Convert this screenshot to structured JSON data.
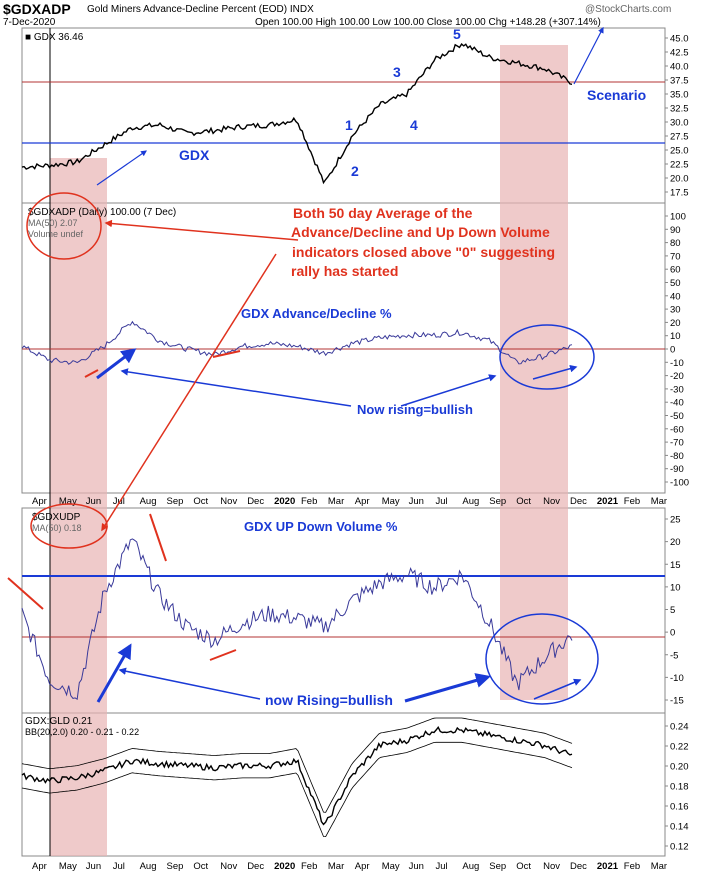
{
  "header": {
    "symbol": "$GDXADP",
    "name": "Gold Miners Advance-Decline Percent (EOD)  INDX",
    "date": "7-Dec-2020",
    "ohlc": "Open 100.00  High 100.00  Low 100.00  Close 100.00  Chg +148.28 (+307.14%)",
    "watermark": "@StockCharts.com"
  },
  "x_axis": {
    "labels": [
      "Apr",
      "May",
      "Jun",
      "Jul",
      "Aug",
      "Sep",
      "Oct",
      "Nov",
      "Dec",
      "2020",
      "Feb",
      "Mar",
      "Apr",
      "May",
      "Jun",
      "Jul",
      "Aug",
      "Sep",
      "Oct",
      "Nov",
      "Dec",
      "2021",
      "Feb",
      "Mar"
    ],
    "bold": [
      "2020",
      "2021"
    ]
  },
  "panels": {
    "gdx": {
      "legend": "■ GDX 36.46",
      "ticks": [
        "45.0",
        "42.5",
        "40.0",
        "37.5",
        "35.0",
        "32.5",
        "30.0",
        "27.5",
        "25.0",
        "22.5",
        "20.0",
        "17.5"
      ],
      "waves": [
        "1",
        "2",
        "3",
        "4",
        "5"
      ],
      "label": "GDX",
      "scenario": "Scenario"
    },
    "adv": {
      "legend1": "$GDXADP (Daily) 100.00 (7 Dec)",
      "legend2": "MA(50) 2.07",
      "legend3": "Volume undef",
      "title": "GDX Advance/Decline %",
      "ticks": [
        "100",
        "90",
        "80",
        "70",
        "60",
        "50",
        "40",
        "30",
        "20",
        "10",
        "0",
        "-10",
        "-20",
        "-30",
        "-40",
        "-50",
        "-60",
        "-70",
        "-80",
        "-90",
        "-100"
      ],
      "note1": "Both 50 day Average of the",
      "note2": "Advance/Decline and Up Down Volume",
      "note3": "indicators closed above \"0\" suggesting",
      "note4": "rally has started",
      "rising": "Now rising=bullish"
    },
    "updown": {
      "legend1": "$GDXUDP",
      "legend2": "MA(50) 0.18",
      "title": "GDX UP Down Volume %",
      "ticks": [
        "25",
        "20",
        "15",
        "10",
        "5",
        "0",
        "-5",
        "-10",
        "-15"
      ],
      "rising": "now Rising=bullish"
    },
    "ratio": {
      "legend1": "GDX:GLD 0.21",
      "legend2": "BB(20,2.0) 0.20 - 0.21 - 0.22",
      "ticks": [
        "0.24",
        "0.22",
        "0.20",
        "0.18",
        "0.16",
        "0.14",
        "0.12"
      ]
    }
  },
  "colors": {
    "price": "#000000",
    "indicator": "#3a3a9a",
    "blue_annot": "#1a3ad6",
    "red_annot": "#e0321e",
    "shade": "#e8b4b4",
    "ref_red": "#b33333"
  },
  "chart_data": [
    {
      "type": "line",
      "title": "GDX",
      "x": [
        "Apr 2019",
        "May",
        "Jun",
        "Jul",
        "Aug",
        "Sep",
        "Oct",
        "Nov",
        "Dec",
        "Jan 2020",
        "Feb",
        "Mar",
        "Apr",
        "May",
        "Jun",
        "Jul",
        "Aug",
        "Sep",
        "Oct",
        "Nov",
        "Dec 2020"
      ],
      "values": [
        21.5,
        21.8,
        22.4,
        25.5,
        28.5,
        29.0,
        27.5,
        28.0,
        28.7,
        29.0,
        30.0,
        18.5,
        27.0,
        32.5,
        34.5,
        40.5,
        43.5,
        41.0,
        40.0,
        39.0,
        36.5
      ],
      "ylim": [
        16,
        45.5
      ],
      "reference_lines": [
        37.5,
        26.5
      ]
    },
    {
      "type": "line",
      "title": "$GDXADP MA(50)",
      "x": [
        "Apr 2019",
        "May",
        "Jun",
        "Jul",
        "Aug",
        "Sep",
        "Oct",
        "Nov",
        "Dec",
        "Jan 2020",
        "Feb",
        "Mar",
        "Apr",
        "May",
        "Jun",
        "Jul",
        "Aug",
        "Sep",
        "Oct",
        "Nov",
        "Dec 2020"
      ],
      "values": [
        2,
        -8,
        -10,
        2,
        20,
        6,
        0,
        -4,
        2,
        4,
        2,
        -3,
        4,
        8,
        10,
        10,
        12,
        6,
        -10,
        -5,
        2.07
      ],
      "ylim": [
        -100,
        100
      ]
    },
    {
      "type": "line",
      "title": "$GDXUDP MA(50)",
      "x": [
        "Apr 2019",
        "May",
        "Jun",
        "Jul",
        "Aug",
        "Sep",
        "Oct",
        "Nov",
        "Dec",
        "Jan 2020",
        "Feb",
        "Mar",
        "Apr",
        "May",
        "Jun",
        "Jul",
        "Aug",
        "Sep",
        "Oct",
        "Nov",
        "Dec 2020"
      ],
      "values": [
        5,
        -10,
        -13,
        10,
        22,
        9,
        2,
        -1,
        3,
        5,
        4,
        2,
        8,
        12,
        14,
        11,
        14,
        3,
        -11,
        -5,
        0.18
      ],
      "ylim": [
        -16,
        28
      ],
      "reference_lines": [
        14,
        0
      ]
    },
    {
      "type": "line",
      "title": "GDX:GLD",
      "x": [
        "Apr 2019",
        "May",
        "Jun",
        "Jul",
        "Aug",
        "Sep",
        "Oct",
        "Nov",
        "Dec",
        "Jan 2020",
        "Feb",
        "Mar",
        "Apr",
        "May",
        "Jun",
        "Jul",
        "Aug",
        "Sep",
        "Oct",
        "Nov",
        "Dec 2020"
      ],
      "values": [
        0.19,
        0.185,
        0.188,
        0.195,
        0.205,
        0.202,
        0.2,
        0.198,
        0.2,
        0.2,
        0.205,
        0.14,
        0.19,
        0.22,
        0.225,
        0.235,
        0.235,
        0.23,
        0.225,
        0.22,
        0.21
      ],
      "ylim": [
        0.115,
        0.245
      ]
    }
  ]
}
